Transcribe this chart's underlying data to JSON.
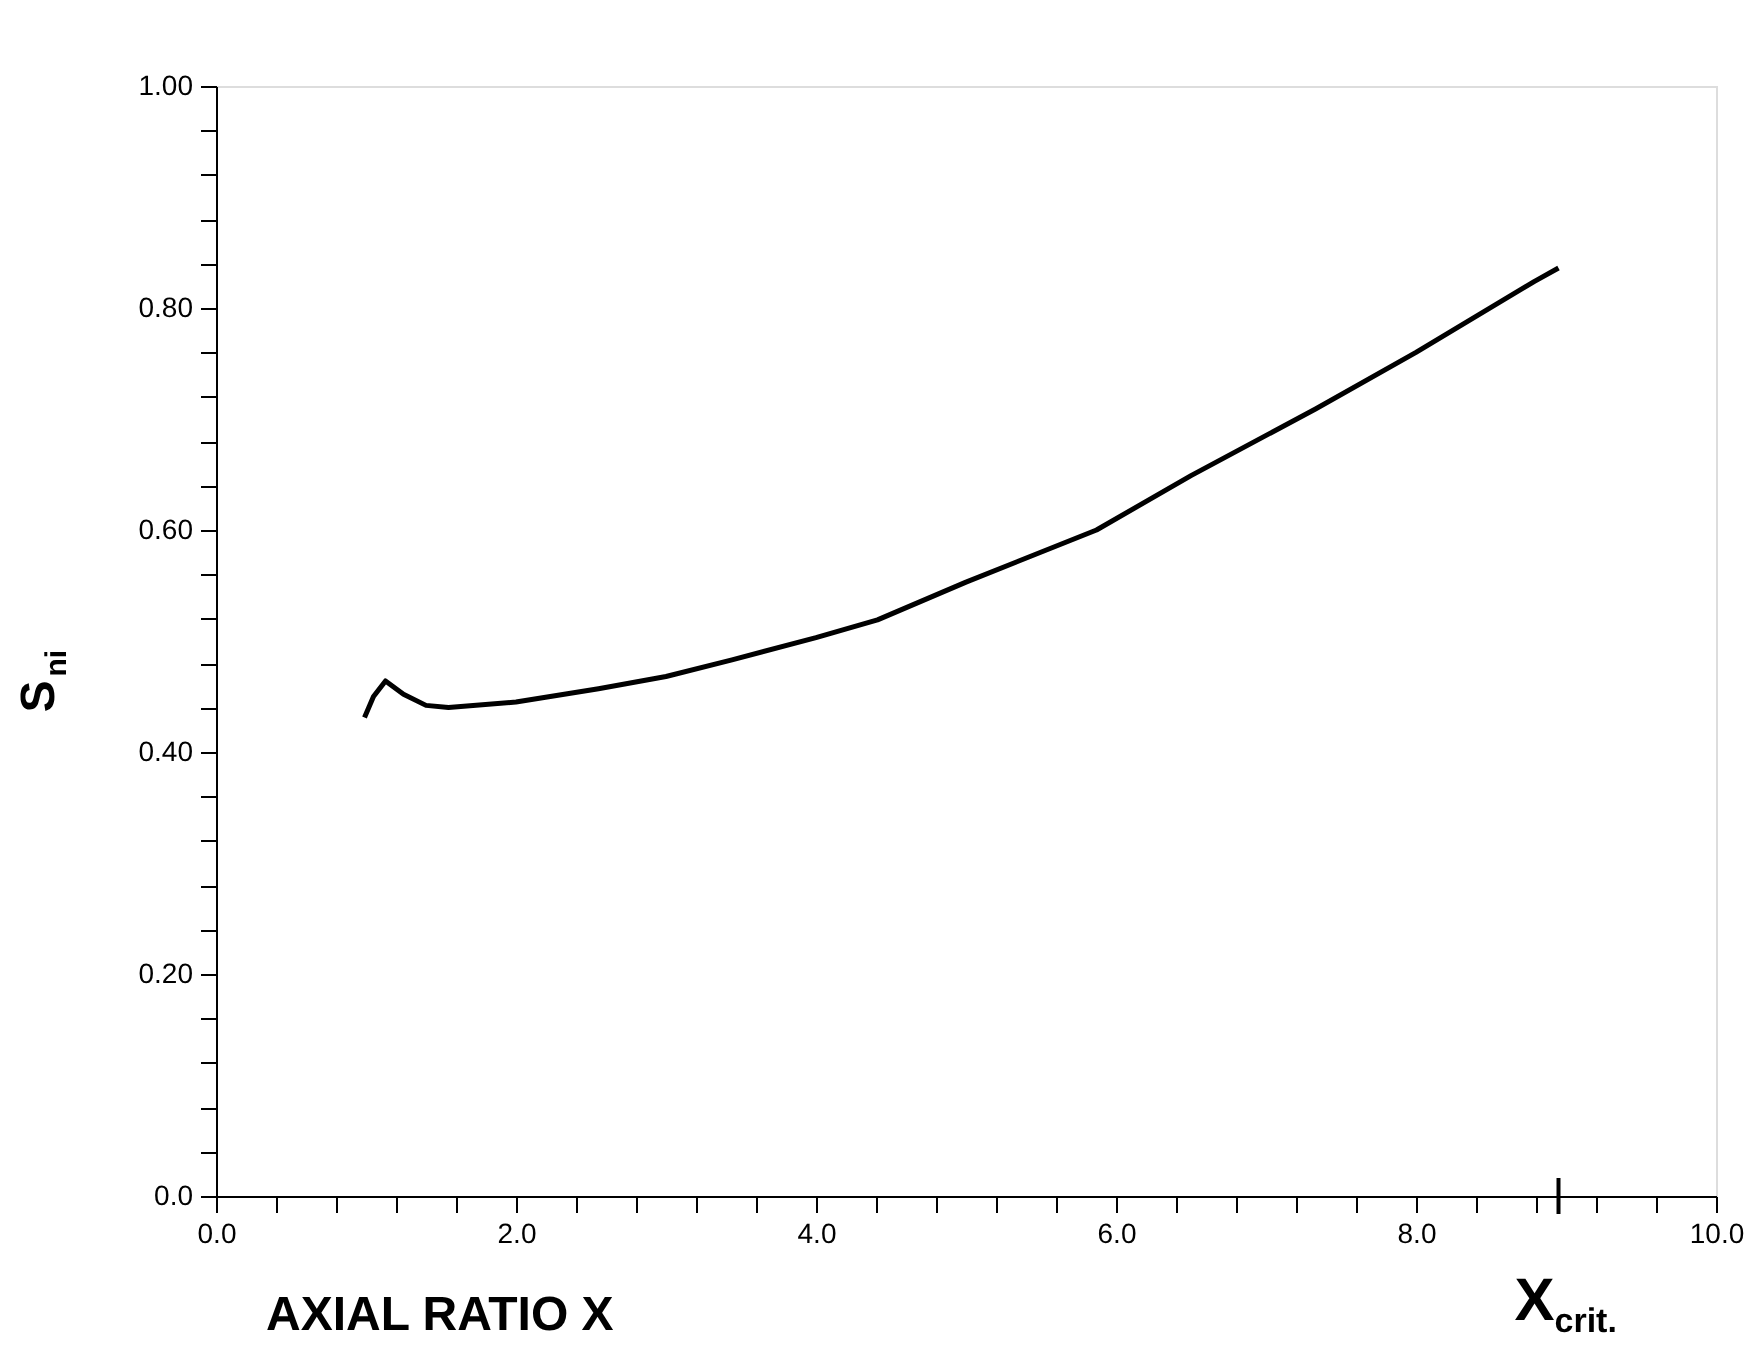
{
  "chart_data": {
    "type": "line",
    "xlabel": "AXIAL RATIO X",
    "ylabel": "S$_{ni}$",
    "x": [
      0.99,
      1.05,
      1.13,
      1.25,
      1.4,
      1.55,
      2.0,
      2.55,
      3.0,
      3.44,
      4.0,
      4.41,
      5.0,
      5.87,
      6.5,
      7.33,
      8.0,
      8.79,
      8.95
    ],
    "series": [
      {
        "color": "#000000",
        "values": [
          0.431,
          0.45,
          0.464,
          0.452,
          0.442,
          0.44,
          0.445,
          0.457,
          0.468,
          0.483,
          0.503,
          0.519,
          0.553,
          0.6,
          0.649,
          0.709,
          0.76,
          0.824,
          0.836
        ]
      }
    ],
    "xlim": [
      0,
      10
    ],
    "ylim": [
      0,
      1
    ],
    "xticks": [
      {
        "value": 0,
        "label": "0.0"
      },
      {
        "value": 0.4,
        "label": null
      },
      {
        "value": 0.8,
        "label": null
      },
      {
        "value": 1.2,
        "label": null
      },
      {
        "value": 1.6,
        "label": null
      },
      {
        "value": 2,
        "label": "2.0"
      },
      {
        "value": 2.4,
        "label": null
      },
      {
        "value": 2.8,
        "label": null
      },
      {
        "value": 3.2,
        "label": null
      },
      {
        "value": 3.6,
        "label": null
      },
      {
        "value": 4,
        "label": "4.0"
      },
      {
        "value": 4.4,
        "label": null
      },
      {
        "value": 4.8,
        "label": null
      },
      {
        "value": 5.2,
        "label": null
      },
      {
        "value": 5.6,
        "label": null
      },
      {
        "value": 6,
        "label": "6.0"
      },
      {
        "value": 6.4,
        "label": null
      },
      {
        "value": 6.8,
        "label": null
      },
      {
        "value": 7.2,
        "label": null
      },
      {
        "value": 7.6,
        "label": null
      },
      {
        "value": 8,
        "label": "8.0"
      },
      {
        "value": 8.4,
        "label": null
      },
      {
        "value": 8.8,
        "label": null
      },
      {
        "value": 9.2,
        "label": null
      },
      {
        "value": 9.6,
        "label": null
      },
      {
        "value": 10,
        "label": "10.0"
      }
    ],
    "yticks": [
      {
        "value": 0,
        "label": "0.0"
      },
      {
        "value": 0.04,
        "label": null
      },
      {
        "value": 0.08,
        "label": null
      },
      {
        "value": 0.12,
        "label": null
      },
      {
        "value": 0.16,
        "label": null
      },
      {
        "value": 0.2,
        "label": "0.20"
      },
      {
        "value": 0.24,
        "label": null
      },
      {
        "value": 0.28,
        "label": null
      },
      {
        "value": 0.32,
        "label": null
      },
      {
        "value": 0.36,
        "label": null
      },
      {
        "value": 0.4,
        "label": "0.40"
      },
      {
        "value": 0.44,
        "label": null
      },
      {
        "value": 0.48,
        "label": null
      },
      {
        "value": 0.52,
        "label": null
      },
      {
        "value": 0.56,
        "label": null
      },
      {
        "value": 0.6,
        "label": "0.60"
      },
      {
        "value": 0.64,
        "label": null
      },
      {
        "value": 0.68,
        "label": null
      },
      {
        "value": 0.72,
        "label": null
      },
      {
        "value": 0.76,
        "label": null
      },
      {
        "value": 0.8,
        "label": "0.80"
      },
      {
        "value": 0.84,
        "label": null
      },
      {
        "value": 0.88,
        "label": null
      },
      {
        "value": 0.92,
        "label": null
      },
      {
        "value": 0.96,
        "label": null
      },
      {
        "value": 1,
        "label": "1.00"
      }
    ],
    "ref_lines": [
      {
        "axis": "x",
        "value": 8.95,
        "label": "X$_{crit.}$"
      }
    ],
    "grid": false,
    "marker": "none",
    "line_style": "solid"
  }
}
